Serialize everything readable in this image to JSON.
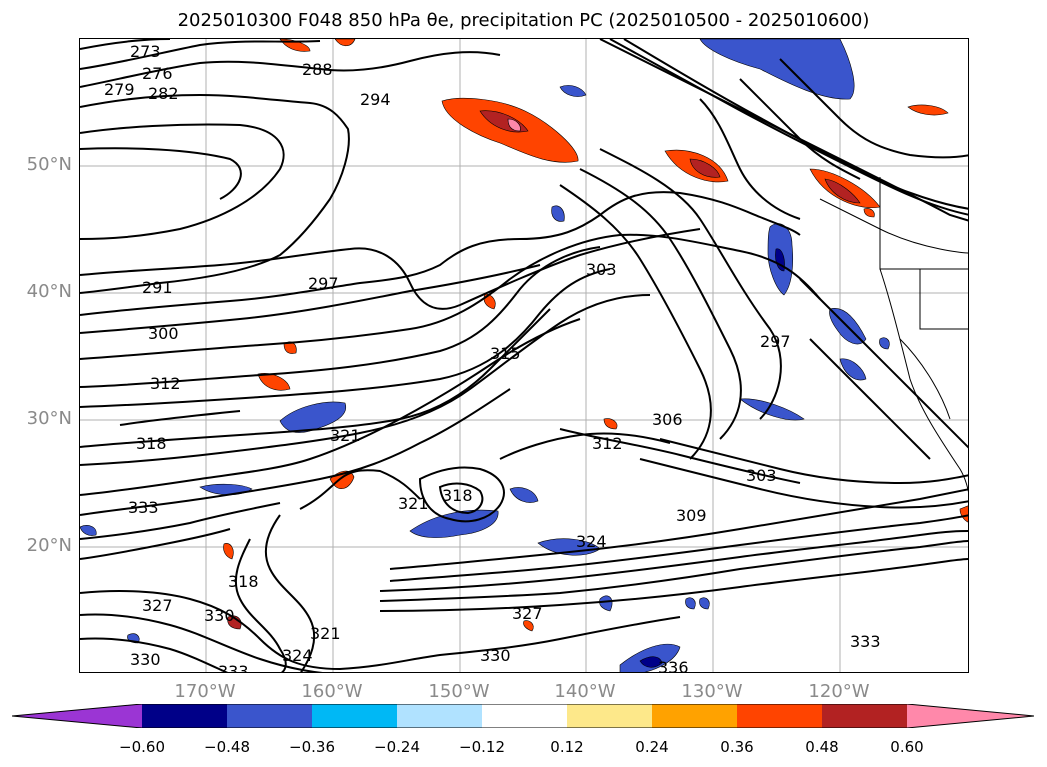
{
  "title": "2025010300 F048 850 hPa θe, precipitation PC (2025010500 - 2025010600)",
  "map": {
    "lat_labels": [
      "50°N",
      "40°N",
      "30°N",
      "20°N"
    ],
    "lon_labels": [
      "170°W",
      "160°W",
      "150°W",
      "140°W",
      "130°W",
      "120°W"
    ],
    "contour_labels": [
      "273",
      "276",
      "279",
      "282",
      "288",
      "294",
      "291",
      "297",
      "300",
      "303",
      "312",
      "315",
      "318",
      "321",
      "306",
      "309",
      "303",
      "297",
      "312",
      "318",
      "321",
      "324",
      "327",
      "330",
      "333",
      "336",
      "330",
      "333",
      "327",
      "324",
      "321",
      "318",
      "330",
      "333"
    ],
    "contour_color": "#000000"
  },
  "colorbar": {
    "ticks": [
      "−0.60",
      "−0.48",
      "−0.36",
      "−0.24",
      "−0.12",
      "0.12",
      "0.24",
      "0.36",
      "0.48",
      "0.60"
    ],
    "colors": [
      "#9b35d4",
      "#000088",
      "#3a55cc",
      "#00b8f5",
      "#b0e2ff",
      "#ffffff",
      "#fde88a",
      "#ffa200",
      "#ff4400",
      "#b22222",
      "#ff88aa"
    ]
  }
}
